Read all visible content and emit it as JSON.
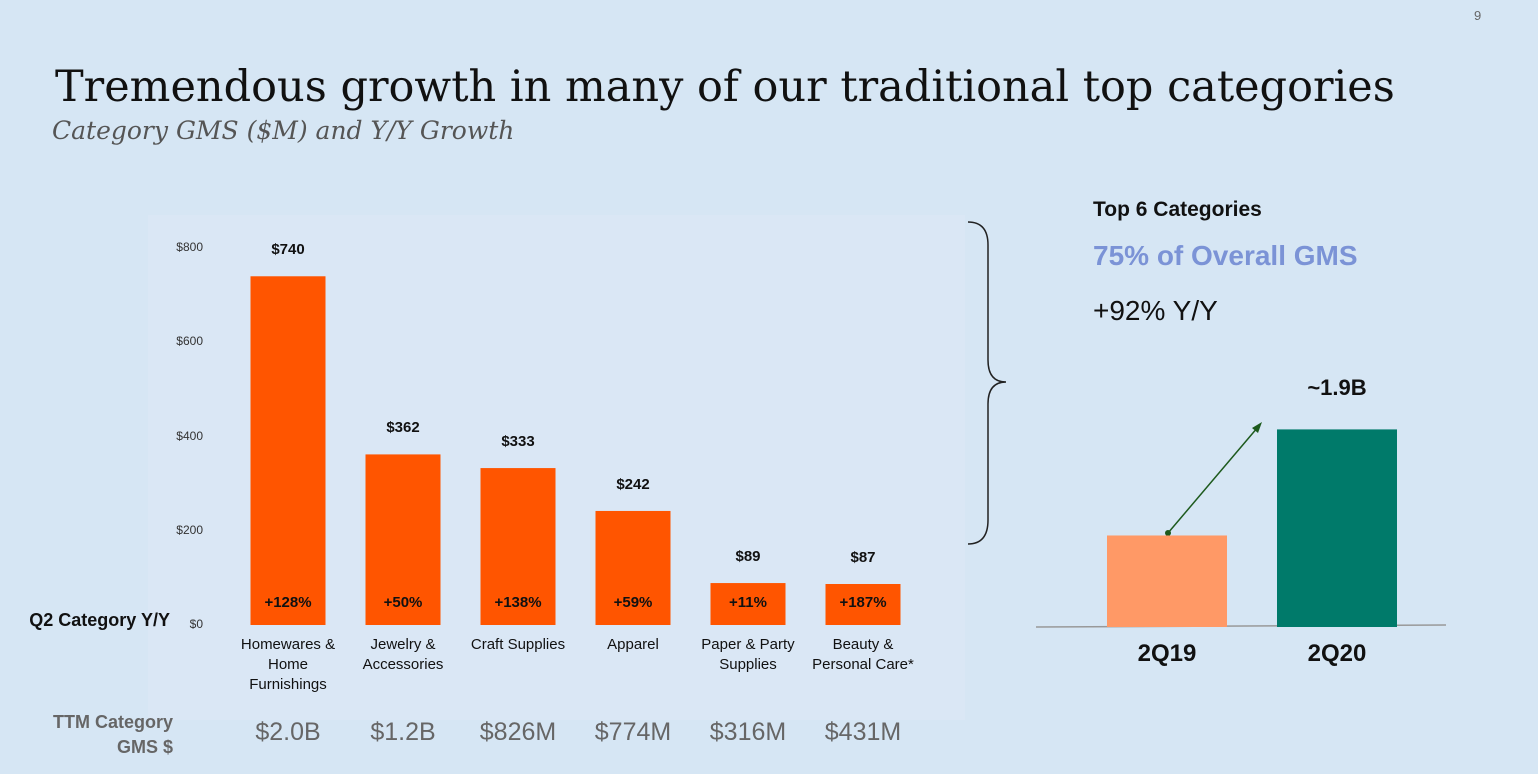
{
  "page_number": "9",
  "title": "Tremendous growth in many of our traditional top categories",
  "subtitle": "Category GMS ($M) and Y/Y Growth",
  "callout": {
    "heading": "Top 6 Categories",
    "share": "75% of Overall GMS",
    "growth": "+92% Y/Y"
  },
  "chart_data": [
    {
      "type": "bar",
      "categories": [
        "Homewares & Home Furnishings",
        "Jewelry & Accessories",
        "Craft Supplies",
        "Apparel",
        "Paper & Party Supplies",
        "Beauty & Personal Care*"
      ],
      "values": [
        740,
        362,
        333,
        242,
        89,
        87
      ],
      "value_labels": [
        "$740",
        "$362",
        "$333",
        "$242",
        "$89",
        "$87"
      ],
      "growth_label": "Q2 Category Y/Y",
      "growth": [
        "+128%",
        "+50%",
        "+138%",
        "+59%",
        "+11%",
        "+187%"
      ],
      "ttm_label": "TTM Category GMS $",
      "ttm": [
        "$2.0B",
        "$1.2B",
        "$826M",
        "$774M",
        "$316M",
        "$431M"
      ],
      "color": "#ff5500",
      "ylim": [
        0,
        800
      ],
      "yticks": [
        {
          "value": 0,
          "label": "$0"
        },
        {
          "value": 200,
          "label": "$200"
        },
        {
          "value": 400,
          "label": "$400"
        },
        {
          "value": 600,
          "label": "$600"
        },
        {
          "value": 800,
          "label": "$800"
        }
      ],
      "grid": false
    },
    {
      "type": "bar",
      "categories": [
        "2Q19",
        "2Q20"
      ],
      "values": [
        0.88,
        1.9
      ],
      "value_labels": [
        null,
        "~1.9B"
      ],
      "colors": [
        "#ff9966",
        "#007a6a"
      ]
    }
  ]
}
